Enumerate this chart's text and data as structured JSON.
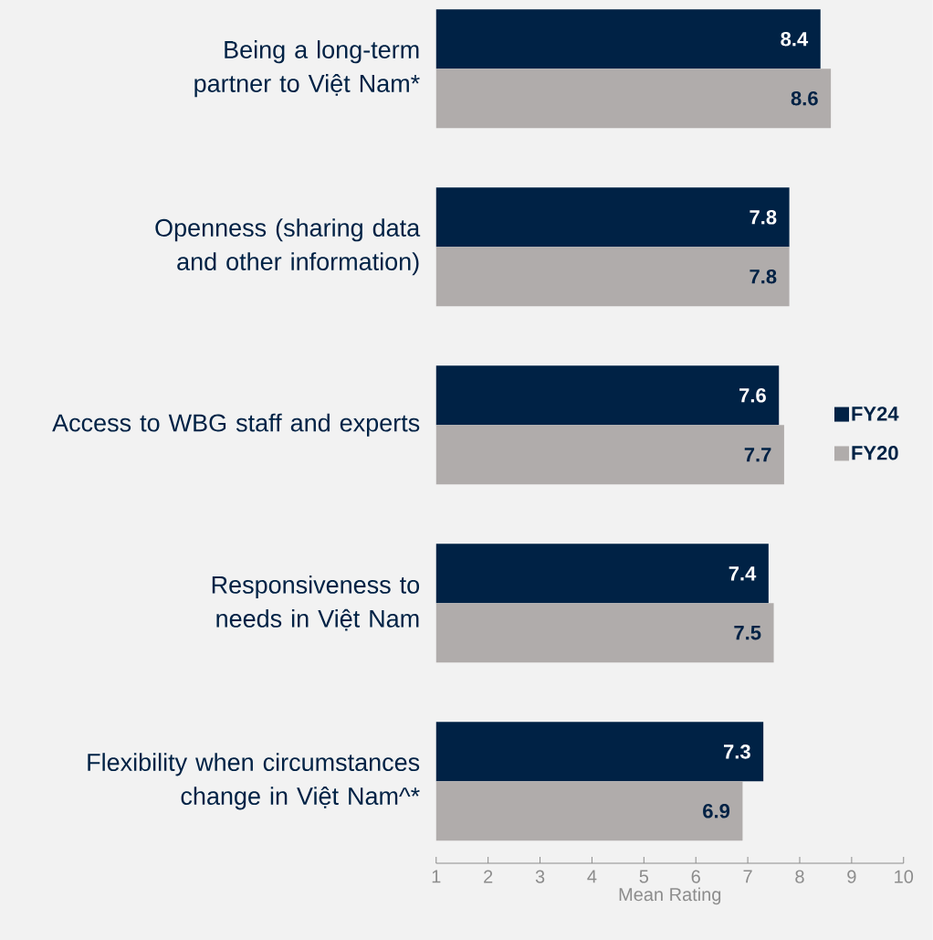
{
  "chart_data": {
    "type": "bar",
    "orientation": "horizontal",
    "xlabel": "Mean Rating",
    "categories": [
      "Being a long-term partner to Việt Nam*",
      "Openness (sharing data and other information)",
      "Access to WBG staff and experts",
      "Responsiveness to needs in Việt Nam",
      "Flexibility when circumstances change in Việt Nam^*"
    ],
    "series": [
      {
        "name": "FY24",
        "color": "#002245",
        "values": [
          8.4,
          7.8,
          7.6,
          7.4,
          7.3
        ]
      },
      {
        "name": "FY20",
        "color": "#b0acab",
        "values": [
          8.6,
          7.8,
          7.7,
          7.5,
          6.9
        ]
      }
    ],
    "xlim": [
      1,
      10
    ],
    "xticks": [
      1,
      2,
      3,
      4,
      5,
      6,
      7,
      8,
      9,
      10
    ],
    "data_labels": true,
    "legend": "right"
  }
}
